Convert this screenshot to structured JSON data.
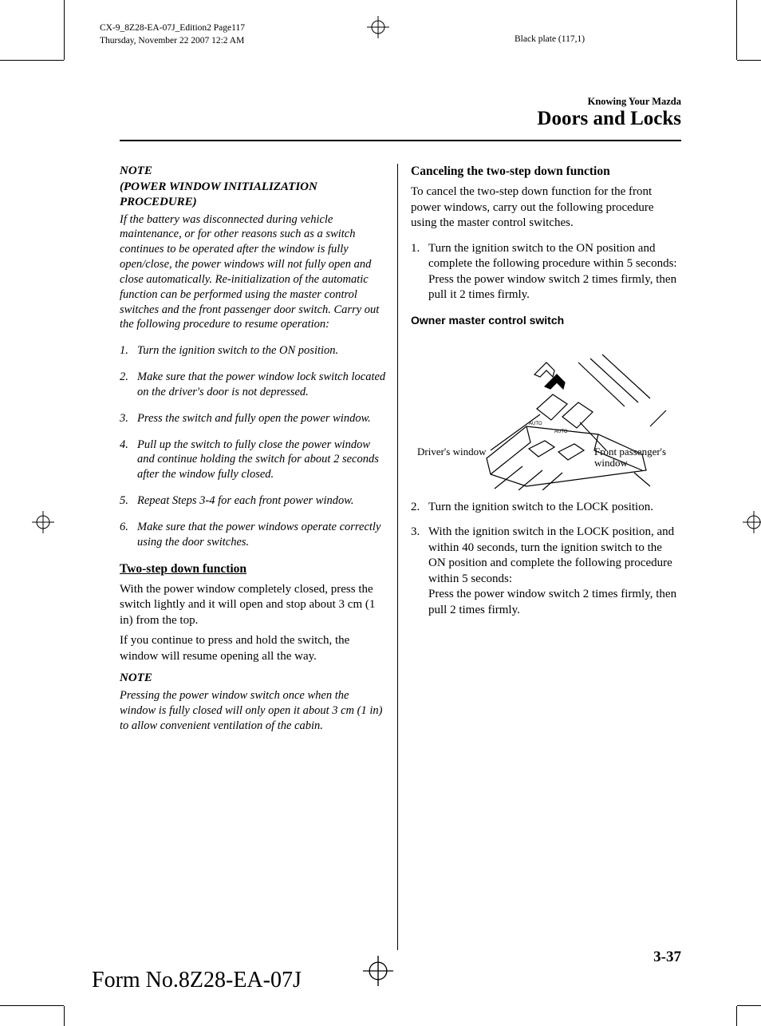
{
  "meta": {
    "doc_line1": "CX-9_8Z28-EA-07J_Edition2  Page117",
    "doc_line2": "Thursday, November 22 2007 12:2 AM",
    "black_plate": "Black  plate  (117,1)"
  },
  "chapter": {
    "supertitle": "Knowing Your Mazda",
    "title": "Doors and Locks"
  },
  "left_column": {
    "note_label": "NOTE",
    "note_subtitle": "(POWER WINDOW INITIALIZATION PROCEDURE)",
    "note_intro": "If the battery was disconnected during vehicle maintenance, or for other reasons such as a switch continues to be operated after the window is fully open/close, the power windows will not fully open and close automatically. Re-initialization of the automatic function can be performed using the master control switches and the front passenger door switch. Carry out the following procedure to resume operation:",
    "steps": [
      "Turn the ignition switch to the ON position.",
      "Make sure that the power window lock switch located on the driver's door is not depressed.",
      "Press the switch and fully open the power window.",
      "Pull up the switch to fully close the power window and continue holding the switch for about 2 seconds after the window fully closed.",
      "Repeat Steps 3-4 for each front power window.",
      "Make sure that the power windows operate correctly using the door switches."
    ],
    "twostep_heading": "Two-step down function",
    "twostep_para1": "With the power window completely closed, press the switch lightly and it will open and stop about 3 cm (1 in) from the top.",
    "twostep_para2": "If you continue to press and hold the switch, the window will resume opening all the way.",
    "note2_label": "NOTE",
    "note2_body": "Pressing the power window switch once when the window is fully closed will only open it about 3 cm (1 in) to allow convenient ventilation of the cabin."
  },
  "right_column": {
    "cancel_heading": "Canceling the two-step down function",
    "cancel_intro": "To cancel the two-step down function for the front power windows, carry out the following procedure using the master control switches.",
    "step1": "Turn the ignition switch to the ON position and complete the following procedure within 5 seconds:\nPress the power window switch 2 times firmly, then pull it 2 times firmly.",
    "figure_caption": "Owner master control switch",
    "fig_label_driver": "Driver's window",
    "fig_label_passenger": "Front passenger's window",
    "step2": "Turn the ignition switch to the LOCK position.",
    "step3": "With the ignition switch in the LOCK position, and within 40 seconds, turn the ignition switch to the ON position and complete the following procedure within 5 seconds:\nPress the power window switch 2 times firmly, then pull 2 times firmly."
  },
  "footer": {
    "page_number": "3-37",
    "form_number": "Form No.8Z28-EA-07J"
  },
  "colors": {
    "text": "#000000",
    "background": "#ffffff"
  }
}
